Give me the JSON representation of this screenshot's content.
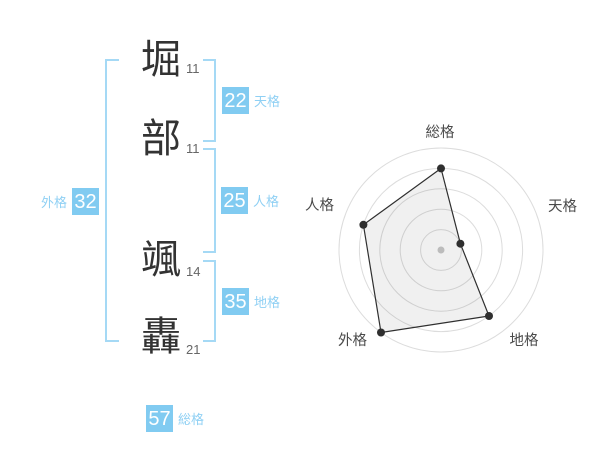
{
  "name_analysis": {
    "characters": [
      {
        "char": "堀",
        "strokes": "11"
      },
      {
        "char": "部",
        "strokes": "11"
      },
      {
        "char": "颯",
        "strokes": "14"
      },
      {
        "char": "轟",
        "strokes": "21"
      }
    ],
    "kaku": {
      "tenkaku": {
        "label": "天格",
        "value": "22"
      },
      "jinkaku": {
        "label": "人格",
        "value": "25"
      },
      "chikaku": {
        "label": "地格",
        "value": "35"
      },
      "gaikaku": {
        "label": "外格",
        "value": "32"
      },
      "soukaku": {
        "label": "総格",
        "value": "57"
      }
    }
  },
  "colors": {
    "badge_blue": "#81cbf1",
    "kaku_label_blue": "#8fd0f4",
    "bracket_blue": "#a5d9f5",
    "kanji_text": "#333333",
    "stroke_count_gray": "#666666",
    "radar_label_gray": "#4a4a4a",
    "radar_ring_gray": "#dcdcdc",
    "radar_line_dark": "#2f2f2f",
    "radar_fill_gray": "rgba(0,0,0,0.06)",
    "radar_center_dot": "#bcbcbc"
  },
  "chart_data": {
    "type": "radar",
    "categories": [
      "総格",
      "天格",
      "地格",
      "外格",
      "人格"
    ],
    "values": [
      80,
      20,
      80,
      100,
      80
    ],
    "max": 100,
    "rings": 5,
    "start_angle_deg": 90,
    "direction": "clockwise",
    "grid": "concentric-circles",
    "legend": "none",
    "center_dot": true
  }
}
